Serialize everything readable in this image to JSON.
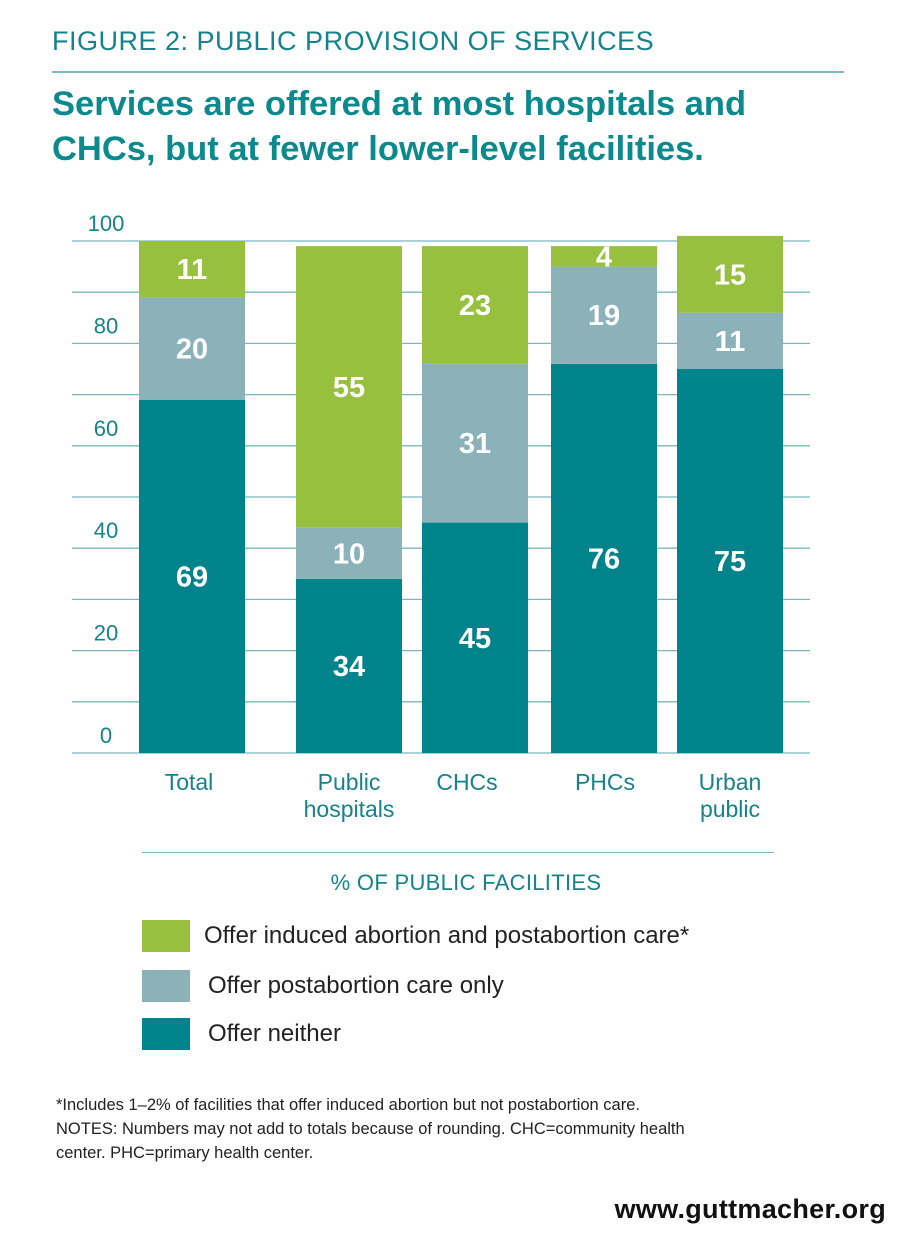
{
  "figure_label": "FIGURE 2: PUBLIC PROVISION OF SERVICES",
  "headline": "Services are offered at most hospitals and CHCs, but at fewer lower-level facilities.",
  "chart_data": {
    "type": "bar",
    "stacked": true,
    "categories": [
      [
        "Total"
      ],
      [
        "Public",
        "hospitals"
      ],
      [
        "CHCs"
      ],
      [
        "PHCs"
      ],
      [
        "Urban",
        "public"
      ]
    ],
    "series": [
      {
        "name": "Offer neither",
        "color": "#00838a",
        "values": [
          69,
          34,
          45,
          76,
          75
        ]
      },
      {
        "name": "Offer postabortion care only",
        "color": "#8bb1b9",
        "values": [
          20,
          10,
          31,
          19,
          11
        ]
      },
      {
        "name": "Offer induced abortion and postabortion care*",
        "color": "#96c03d",
        "values": [
          11,
          55,
          23,
          4,
          15
        ]
      }
    ],
    "ylim": [
      0,
      100
    ],
    "yticks": [
      0,
      20,
      40,
      60,
      80,
      100
    ],
    "grid": true,
    "xlabel": "% OF PUBLIC FACILITIES"
  },
  "footnotes": [
    "*Includes 1–2% of facilities that offer induced abortion but not postabortion care.",
    "NOTES: Numbers may not add to totals because of rounding. CHC=community health",
    "center. PHC=primary health center."
  ],
  "website": "www.guttmacher.org",
  "colors": {
    "accent": "#15838a",
    "headline": "#0a8a8d",
    "grid": "#79b8bc",
    "label_on_bar": "#ffffff"
  }
}
